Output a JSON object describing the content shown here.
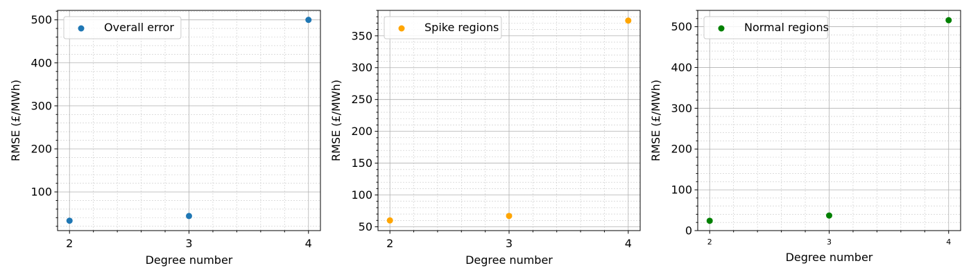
{
  "chart_data": [
    {
      "type": "scatter",
      "xlabel": "Degree number",
      "ylabel": "RMSE (£/MWh)",
      "xlim": [
        1.9,
        4.1
      ],
      "ylim": [
        10,
        522
      ],
      "xticks": [
        2,
        3,
        4
      ],
      "yticks": [
        100,
        200,
        300,
        400,
        500
      ],
      "grid": true,
      "legend_position": "top-left",
      "series": [
        {
          "name": "Overall error",
          "color": "#1f77b4",
          "x": [
            2,
            3,
            4
          ],
          "y": [
            33,
            44,
            500
          ]
        }
      ]
    },
    {
      "type": "scatter",
      "xlabel": "Degree number",
      "ylabel": "RMSE (£/MWh)",
      "xlim": [
        1.9,
        4.1
      ],
      "ylim": [
        44,
        390
      ],
      "xticks": [
        2,
        3,
        4
      ],
      "yticks": [
        50,
        100,
        150,
        200,
        250,
        300,
        350
      ],
      "grid": true,
      "legend_position": "top-left",
      "series": [
        {
          "name": "Spike regions",
          "color": "#ffa500",
          "x": [
            2,
            3,
            4
          ],
          "y": [
            60,
            67,
            374
          ]
        }
      ]
    },
    {
      "type": "scatter",
      "xlabel": "Degree number",
      "ylabel": "RMSE (£/MWh)",
      "xlim": [
        1.9,
        4.1
      ],
      "ylim": [
        0,
        540
      ],
      "xticks": [
        2,
        3,
        4
      ],
      "yticks": [
        0,
        100,
        200,
        300,
        400,
        500
      ],
      "grid": true,
      "legend_position": "top-left",
      "series": [
        {
          "name": "Normal regions",
          "color": "#008000",
          "x": [
            2,
            3,
            4
          ],
          "y": [
            24,
            37,
            516
          ]
        }
      ]
    }
  ]
}
